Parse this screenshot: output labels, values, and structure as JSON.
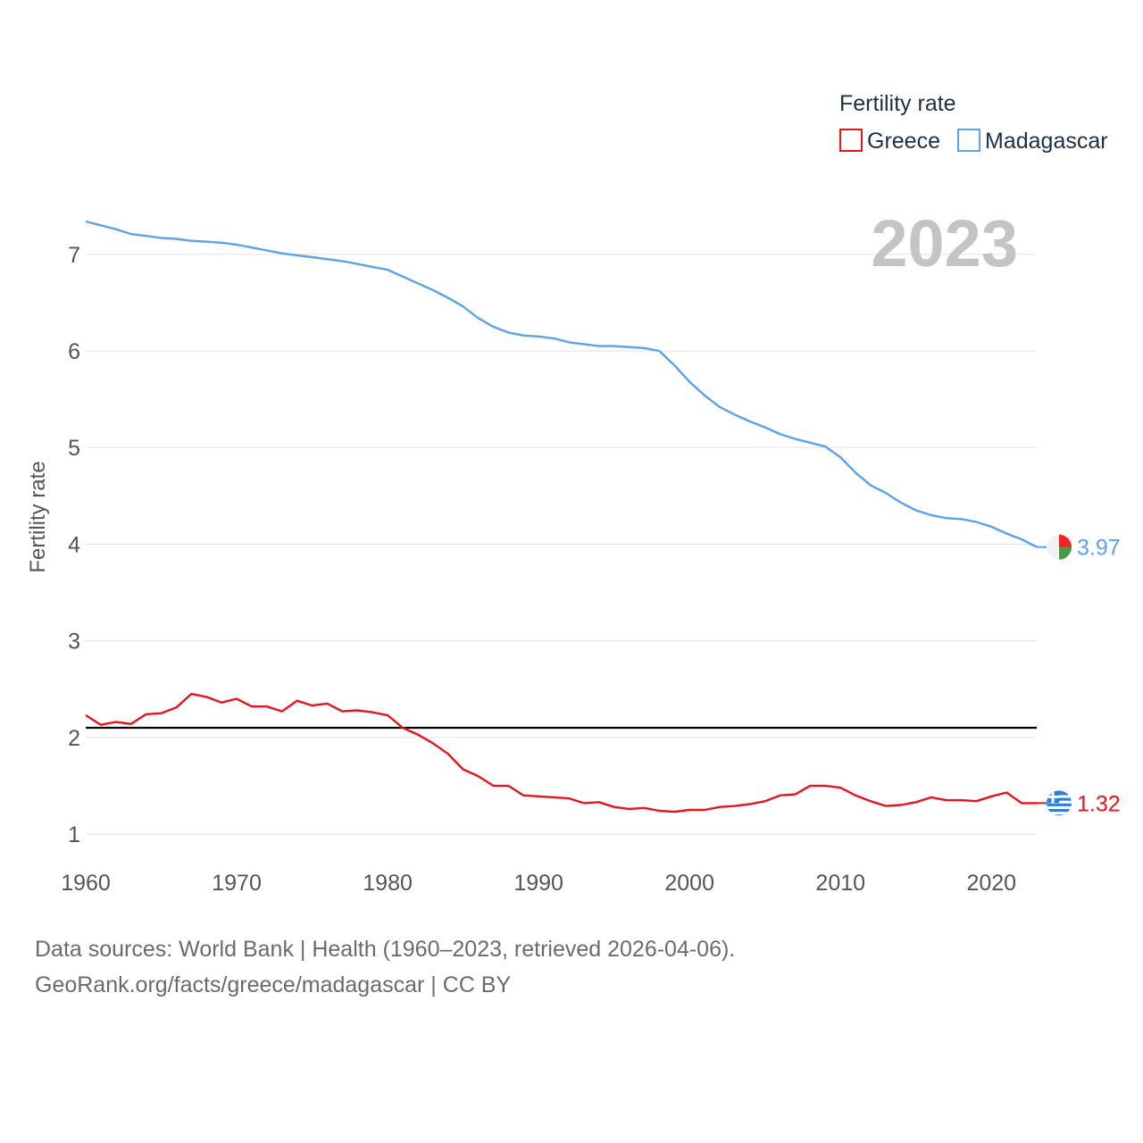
{
  "chart_data": {
    "type": "line",
    "title": "",
    "ylabel": "Fertility rate",
    "xlabel": "",
    "xlim": [
      1960,
      2023
    ],
    "ylim": [
      0.9,
      7.6
    ],
    "x_ticks": [
      "1960",
      "1970",
      "1980",
      "1990",
      "2000",
      "2010",
      "2020"
    ],
    "y_ticks": [
      "1",
      "2",
      "3",
      "4",
      "5",
      "6",
      "7"
    ],
    "year_label": "2023",
    "replacement_level": 2.1,
    "legend": {
      "title": "Fertility rate",
      "position": "top-right"
    },
    "series": [
      {
        "name": "Greece",
        "color": "#e8141a",
        "end_label": "1.32",
        "flag_icon": "greece-flag-icon",
        "x": [
          1960,
          1961,
          1962,
          1963,
          1964,
          1965,
          1966,
          1967,
          1968,
          1969,
          1970,
          1971,
          1972,
          1973,
          1974,
          1975,
          1976,
          1977,
          1978,
          1979,
          1980,
          1981,
          1982,
          1983,
          1984,
          1985,
          1986,
          1987,
          1988,
          1989,
          1990,
          1991,
          1992,
          1993,
          1994,
          1995,
          1996,
          1997,
          1998,
          1999,
          2000,
          2001,
          2002,
          2003,
          2004,
          2005,
          2006,
          2007,
          2008,
          2009,
          2010,
          2011,
          2012,
          2013,
          2014,
          2015,
          2016,
          2017,
          2018,
          2019,
          2020,
          2021,
          2022,
          2023
        ],
        "values": [
          2.23,
          2.13,
          2.16,
          2.14,
          2.24,
          2.25,
          2.31,
          2.45,
          2.42,
          2.36,
          2.4,
          2.32,
          2.32,
          2.27,
          2.38,
          2.33,
          2.35,
          2.27,
          2.28,
          2.26,
          2.23,
          2.1,
          2.03,
          1.94,
          1.83,
          1.67,
          1.6,
          1.5,
          1.5,
          1.4,
          1.39,
          1.38,
          1.37,
          1.32,
          1.33,
          1.28,
          1.26,
          1.27,
          1.24,
          1.23,
          1.25,
          1.25,
          1.28,
          1.29,
          1.31,
          1.34,
          1.4,
          1.41,
          1.5,
          1.5,
          1.48,
          1.4,
          1.34,
          1.29,
          1.3,
          1.33,
          1.38,
          1.35,
          1.35,
          1.34,
          1.39,
          1.43,
          1.32,
          1.32
        ]
      },
      {
        "name": "Madagascar",
        "color": "#5ba3e6",
        "end_label": "3.97",
        "flag_icon": "madagascar-flag-icon",
        "x": [
          1960,
          1961,
          1962,
          1963,
          1964,
          1965,
          1966,
          1967,
          1968,
          1969,
          1970,
          1971,
          1972,
          1973,
          1974,
          1975,
          1976,
          1977,
          1978,
          1979,
          1980,
          1981,
          1982,
          1983,
          1984,
          1985,
          1986,
          1987,
          1988,
          1989,
          1990,
          1991,
          1992,
          1993,
          1994,
          1995,
          1996,
          1997,
          1998,
          1999,
          2000,
          2001,
          2002,
          2003,
          2004,
          2005,
          2006,
          2007,
          2008,
          2009,
          2010,
          2011,
          2012,
          2013,
          2014,
          2015,
          2016,
          2017,
          2018,
          2019,
          2020,
          2021,
          2022,
          2023
        ],
        "values": [
          7.34,
          7.3,
          7.26,
          7.21,
          7.19,
          7.17,
          7.16,
          7.14,
          7.13,
          7.12,
          7.1,
          7.07,
          7.04,
          7.01,
          6.99,
          6.97,
          6.95,
          6.93,
          6.9,
          6.87,
          6.84,
          6.77,
          6.7,
          6.63,
          6.55,
          6.46,
          6.34,
          6.25,
          6.19,
          6.16,
          6.15,
          6.13,
          6.09,
          6.07,
          6.05,
          6.05,
          6.04,
          6.03,
          6.0,
          5.85,
          5.68,
          5.54,
          5.42,
          5.34,
          5.27,
          5.21,
          5.14,
          5.09,
          5.05,
          5.01,
          4.9,
          4.74,
          4.61,
          4.53,
          4.43,
          4.35,
          4.3,
          4.27,
          4.26,
          4.23,
          4.18,
          4.11,
          4.05,
          3.97
        ]
      }
    ]
  },
  "footer": {
    "source_line": "Data sources: World Bank | Health (1960–2023, retrieved 2026-04-06).",
    "credit_line": "GeoRank.org/facts/greece/madagascar | CC BY"
  }
}
